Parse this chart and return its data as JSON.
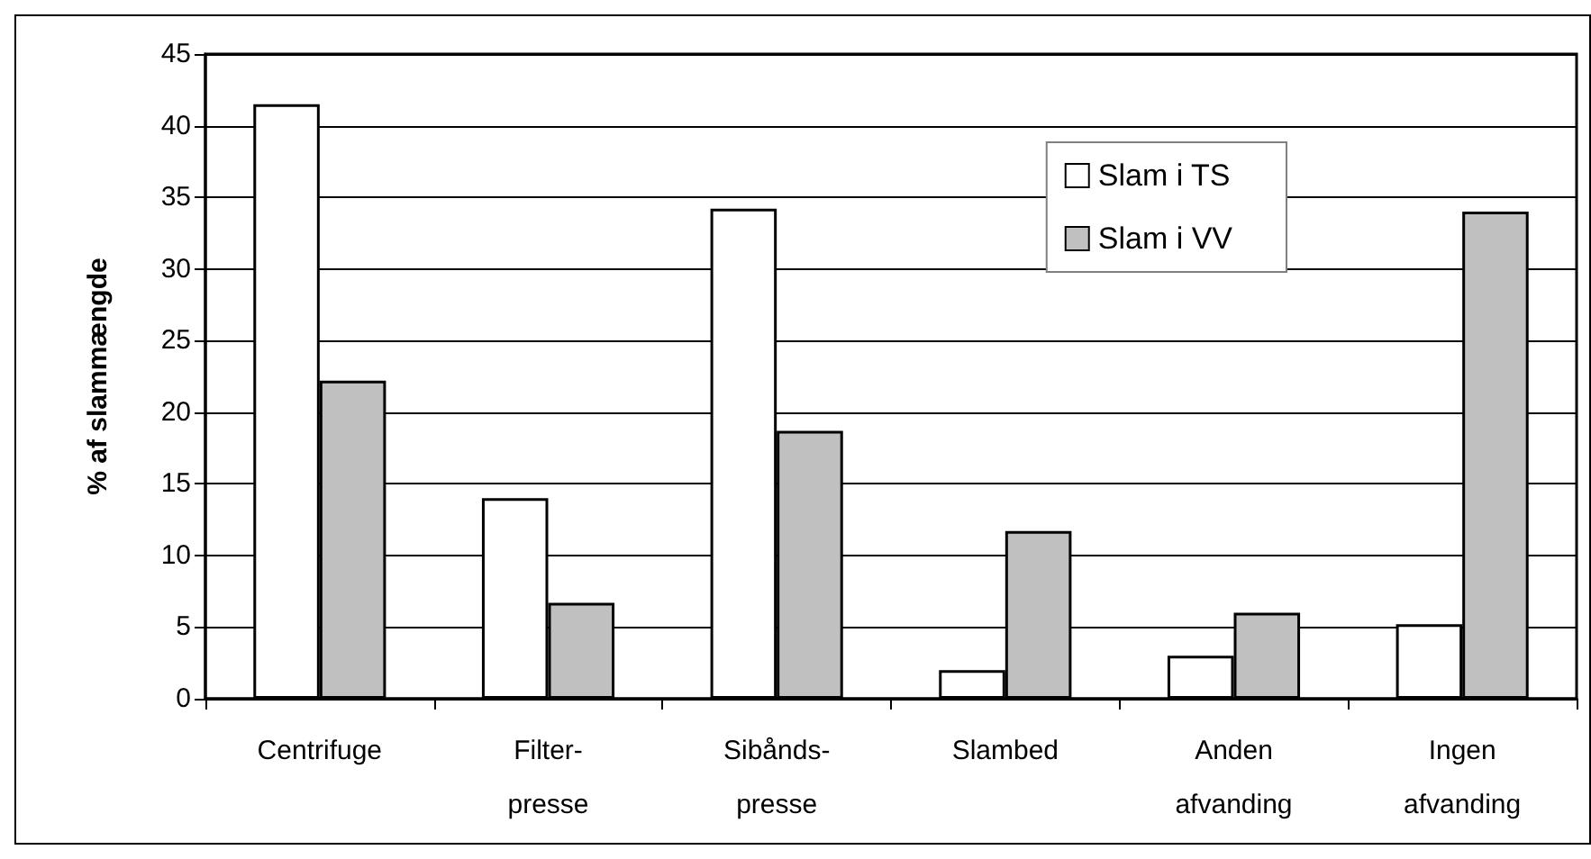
{
  "chart_data": {
    "type": "bar",
    "ylabel": "% af slammængde",
    "categories": [
      "Centrifuge",
      "Filter-\npresse",
      "Sibånds-\npresse",
      "Slambed",
      "Anden\nafvanding",
      "Ingen\nafvanding"
    ],
    "series": [
      {
        "name": "Slam i TS",
        "color": "#ffffff",
        "values": [
          41.5,
          14.0,
          34.2,
          2.0,
          3.0,
          5.2
        ]
      },
      {
        "name": "Slam i VV",
        "color": "#c0c0c0",
        "values": [
          22.2,
          6.7,
          18.7,
          11.7,
          6.0,
          34.0
        ]
      }
    ],
    "ylim": [
      0,
      45
    ],
    "yticks": [
      0,
      5,
      10,
      15,
      20,
      25,
      30,
      35,
      40,
      45
    ],
    "grid": "y",
    "legend": "top right"
  }
}
